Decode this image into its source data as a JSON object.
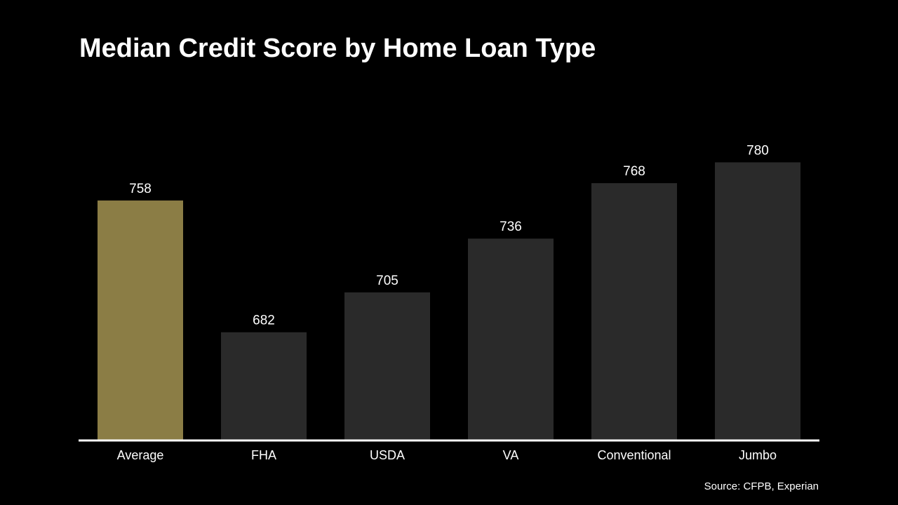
{
  "chart_data": {
    "type": "bar",
    "title": "Median Credit Score by Home Loan Type",
    "categories": [
      "Average",
      "FHA",
      "USDA",
      "VA",
      "Conventional",
      "Jumbo"
    ],
    "values": [
      758,
      682,
      705,
      736,
      768,
      780
    ],
    "colors": [
      "#8b7d45",
      "#2a2a2a",
      "#2a2a2a",
      "#2a2a2a",
      "#2a2a2a",
      "#2a2a2a"
    ],
    "ylim": [
      620,
      800
    ],
    "source": "Source: CFPB, Experian"
  }
}
